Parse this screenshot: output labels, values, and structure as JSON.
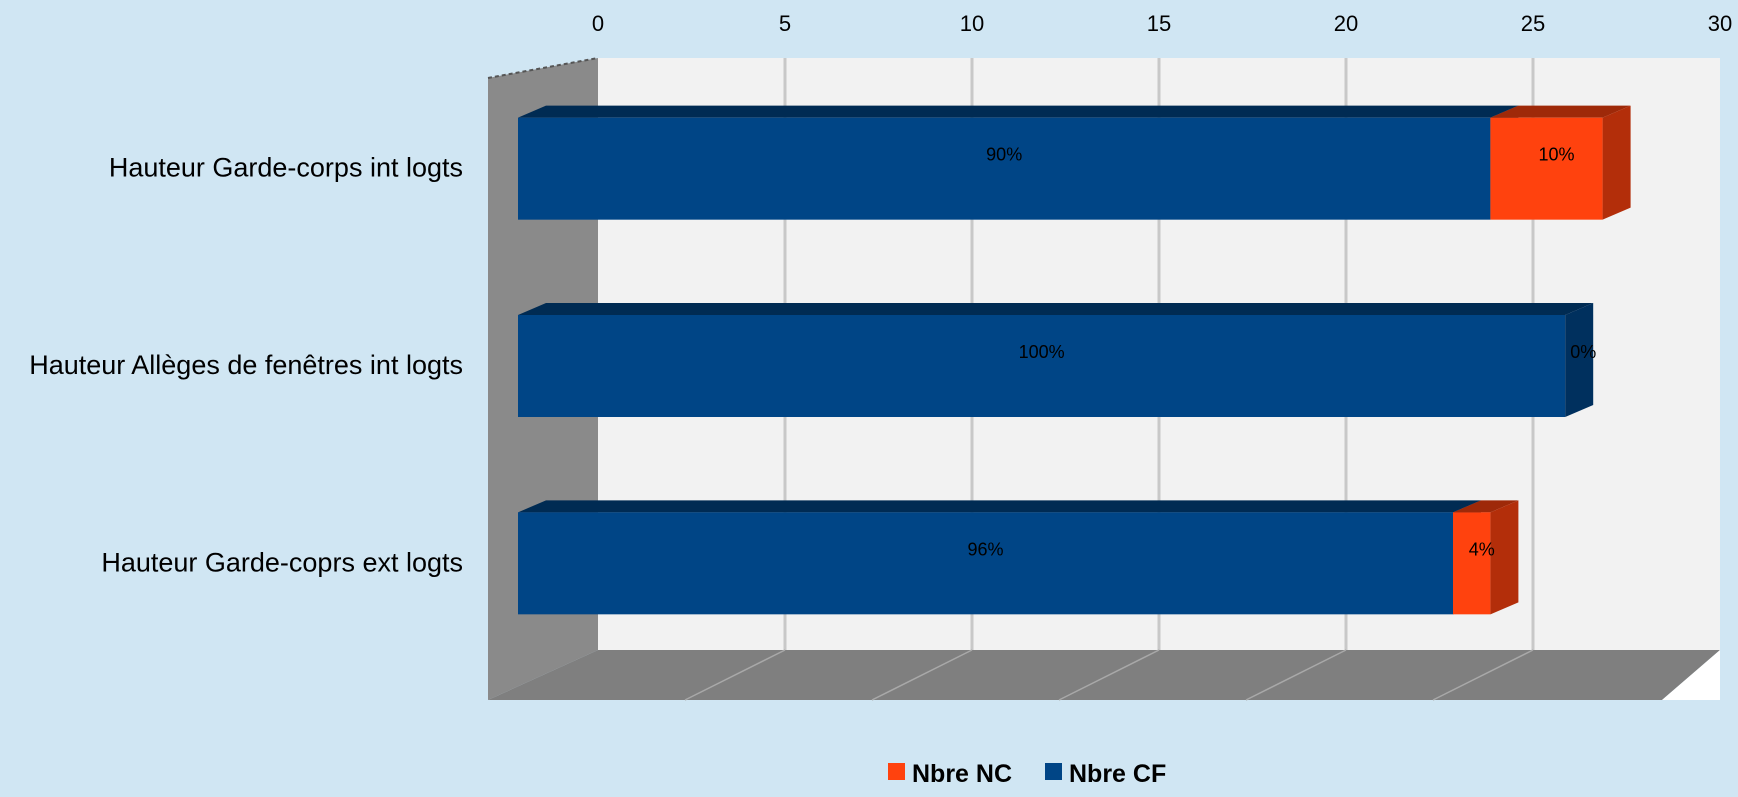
{
  "chart_data": {
    "type": "bar",
    "orientation": "horizontal",
    "stacked": true,
    "percent_labels": true,
    "three_d": true,
    "categories": [
      "Hauteur Garde-corps int logts",
      "Hauteur Allèges de fenêtres int logts",
      "Hauteur Garde-coprs ext logts"
    ],
    "series": [
      {
        "name": "Nbre CF",
        "color": "#004586",
        "values": [
          26,
          28,
          25
        ],
        "labels": [
          "90%",
          "100%",
          "96%"
        ]
      },
      {
        "name": "Nbre NC",
        "color": "#ff420e",
        "values": [
          3,
          0,
          1
        ],
        "labels": [
          "10%",
          "0%",
          "4%"
        ]
      }
    ],
    "xlim": [
      0,
      30
    ],
    "xticks": [
      "0",
      "5",
      "10",
      "15",
      "20",
      "25",
      "30"
    ],
    "xaxis_position": "top",
    "grid": true,
    "legend": {
      "position": "bottom",
      "entries": [
        {
          "label": "Nbre NC",
          "color": "#ff420e"
        },
        {
          "label": "Nbre CF",
          "color": "#004586"
        }
      ]
    }
  }
}
